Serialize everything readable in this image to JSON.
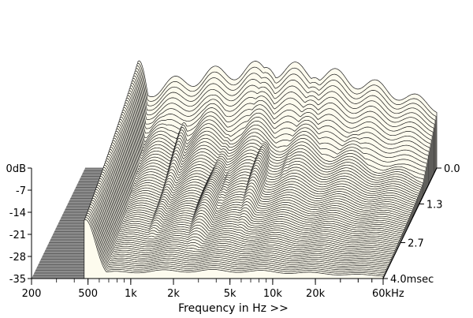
{
  "chart_data": {
    "type": "waterfall",
    "xlabel": "Frequency in Hz >>",
    "x_ticks": [
      "200",
      "500",
      "1k",
      "2k",
      "5k",
      "10k",
      "20k",
      "60kHz"
    ],
    "x_tick_values_hz": [
      200,
      500,
      1000,
      2000,
      5000,
      10000,
      20000,
      60000
    ],
    "xlim_hz": [
      200,
      60000
    ],
    "x_scale": "log",
    "y_ticks": [
      "0dB",
      "-7",
      "-14",
      "-21",
      "-28",
      "-35"
    ],
    "y_tick_values_db": [
      0,
      -7,
      -14,
      -21,
      -28,
      -35
    ],
    "ylim_db": [
      -35,
      0
    ],
    "z_ticks": [
      "0.0",
      "1.3",
      "2.7",
      "4.0msec"
    ],
    "z_tick_values_ms": [
      0.0,
      1.3,
      2.7,
      4.0
    ],
    "zlim_ms": [
      0.0,
      4.0
    ],
    "slice_count": 70,
    "decay_peaks": [
      {
        "freq_hz": 1100,
        "level_db": 7,
        "sustain_ms": 3.3
      },
      {
        "freq_hz": 1600,
        "level_db": 7,
        "sustain_ms": 3.0
      },
      {
        "freq_hz": 2300,
        "level_db": 8,
        "sustain_ms": 3.8
      },
      {
        "freq_hz": 2800,
        "level_db": 5,
        "sustain_ms": 3.0
      },
      {
        "freq_hz": 4500,
        "level_db": 9,
        "sustain_ms": 3.6
      },
      {
        "freq_hz": 7000,
        "level_db": 6,
        "sustain_ms": 2.8
      },
      {
        "freq_hz": 9500,
        "level_db": 6,
        "sustain_ms": 2.4
      },
      {
        "freq_hz": 15000,
        "level_db": 3,
        "sustain_ms": 1.6
      },
      {
        "freq_hz": 45000,
        "level_db": 4,
        "sustain_ms": 0.5
      }
    ],
    "colors": {
      "surface": "#fdfbee",
      "line": "#1a1a1a",
      "floor": "#8c8c8c",
      "floor_line": "#505050"
    }
  }
}
